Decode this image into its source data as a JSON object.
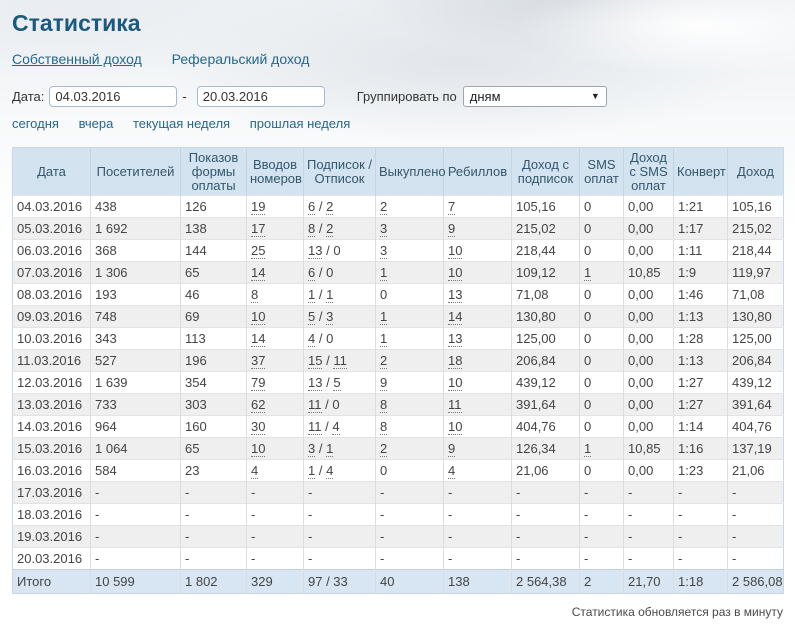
{
  "page": {
    "title": "Статистика",
    "footer_note": "Статистика обновляется раз в минуту"
  },
  "colors": {
    "title_color": "#1b5a7e",
    "link_color": "#26678e",
    "header_bg": "#d4e3f0",
    "header_text": "#33576d",
    "row_alt_bg": "#efefef",
    "total_row_bg": "#d8e6f3",
    "table_border": "#c9d8e4",
    "cell_border": "#dddddd",
    "text_color": "#444444"
  },
  "tabs": [
    {
      "label": "Собственный доход",
      "active": true
    },
    {
      "label": "Реферальский доход",
      "active": false
    }
  ],
  "filters": {
    "date_label": "Дата:",
    "date_from": "04.03.2016",
    "separator": "-",
    "date_to": "20.03.2016",
    "group_label": "Группировать по",
    "group_value": "дням",
    "dropdown_arrow": "▼",
    "quick_links": [
      "сегодня",
      "вчера",
      "текущая неделя",
      "прошлая неделя"
    ]
  },
  "table": {
    "headers": [
      "Дата",
      "Посетителей",
      "Показов формы оплаты",
      "Вводов номеров",
      "Подписок / Отписок",
      "Выкуплено",
      "Ребиллов",
      "Доход с подписок",
      "SMS оплат",
      "Доход с SMS оплат",
      "Конверт",
      "Доход"
    ],
    "dotted_columns": [
      3,
      5,
      6,
      8
    ],
    "split_column": 4,
    "rows": [
      [
        "04.03.2016",
        "438",
        "126",
        "19",
        "6 / 2",
        "2",
        "7",
        "105,16",
        "0",
        "0,00",
        "1:21",
        "105,16"
      ],
      [
        "05.03.2016",
        "1 692",
        "138",
        "17",
        "8 / 2",
        "3",
        "9",
        "215,02",
        "0",
        "0,00",
        "1:17",
        "215,02"
      ],
      [
        "06.03.2016",
        "368",
        "144",
        "25",
        "13 / 0",
        "3",
        "10",
        "218,44",
        "0",
        "0,00",
        "1:11",
        "218,44"
      ],
      [
        "07.03.2016",
        "1 306",
        "65",
        "14",
        "6 / 0",
        "1",
        "10",
        "109,12",
        "1",
        "10,85",
        "1:9",
        "119,97"
      ],
      [
        "08.03.2016",
        "193",
        "46",
        "8",
        "1 / 1",
        "0",
        "13",
        "71,08",
        "0",
        "0,00",
        "1:46",
        "71,08"
      ],
      [
        "09.03.2016",
        "748",
        "69",
        "10",
        "5 / 3",
        "1",
        "14",
        "130,80",
        "0",
        "0,00",
        "1:13",
        "130,80"
      ],
      [
        "10.03.2016",
        "343",
        "113",
        "14",
        "4 / 0",
        "1",
        "13",
        "125,00",
        "0",
        "0,00",
        "1:28",
        "125,00"
      ],
      [
        "11.03.2016",
        "527",
        "196",
        "37",
        "15 / 11",
        "2",
        "18",
        "206,84",
        "0",
        "0,00",
        "1:13",
        "206,84"
      ],
      [
        "12.03.2016",
        "1 639",
        "354",
        "79",
        "13 / 5",
        "9",
        "10",
        "439,12",
        "0",
        "0,00",
        "1:27",
        "439,12"
      ],
      [
        "13.03.2016",
        "733",
        "303",
        "62",
        "11 / 0",
        "8",
        "11",
        "391,64",
        "0",
        "0,00",
        "1:27",
        "391,64"
      ],
      [
        "14.03.2016",
        "964",
        "160",
        "30",
        "11 / 4",
        "8",
        "10",
        "404,76",
        "0",
        "0,00",
        "1:14",
        "404,76"
      ],
      [
        "15.03.2016",
        "1 064",
        "65",
        "10",
        "3 / 1",
        "2",
        "9",
        "126,34",
        "1",
        "10,85",
        "1:16",
        "137,19"
      ],
      [
        "16.03.2016",
        "584",
        "23",
        "4",
        "1 / 4",
        "0",
        "4",
        "21,06",
        "0",
        "0,00",
        "1:23",
        "21,06"
      ],
      [
        "17.03.2016",
        "-",
        "-",
        "-",
        "-",
        "-",
        "-",
        "-",
        "-",
        "-",
        "-",
        "-"
      ],
      [
        "18.03.2016",
        "-",
        "-",
        "-",
        "-",
        "-",
        "-",
        "-",
        "-",
        "-",
        "-",
        "-"
      ],
      [
        "19.03.2016",
        "-",
        "-",
        "-",
        "-",
        "-",
        "-",
        "-",
        "-",
        "-",
        "-",
        "-"
      ],
      [
        "20.03.2016",
        "-",
        "-",
        "-",
        "-",
        "-",
        "-",
        "-",
        "-",
        "-",
        "-",
        "-"
      ]
    ],
    "total": [
      "Итого",
      "10 599",
      "1 802",
      "329",
      "97 / 33",
      "40",
      "138",
      "2 564,38",
      "2",
      "21,70",
      "1:18",
      "2 586,08"
    ]
  }
}
